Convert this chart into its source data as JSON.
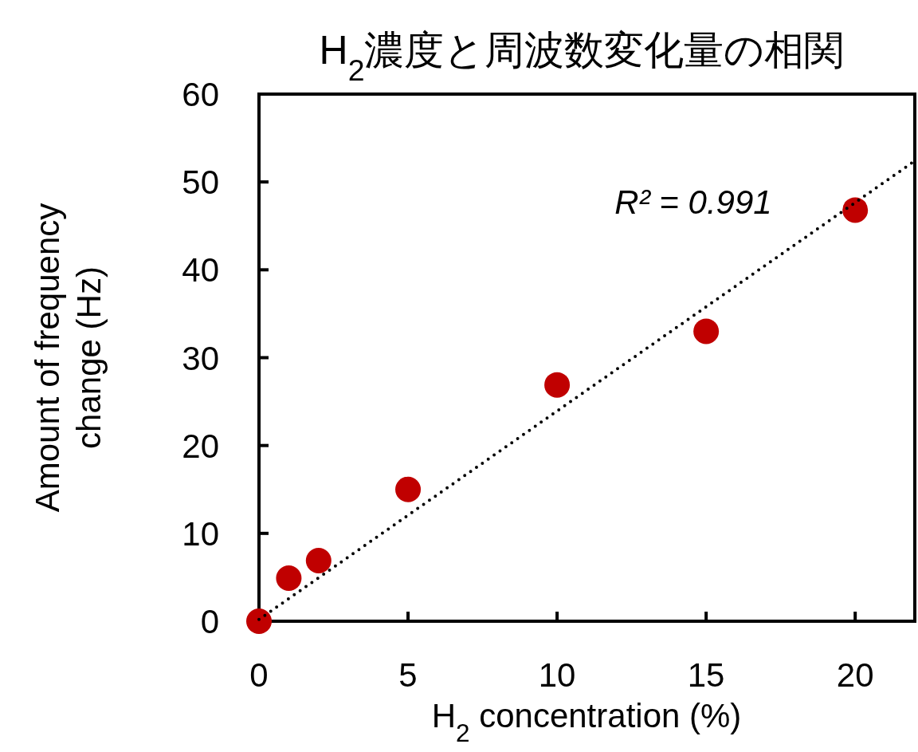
{
  "chart_data": {
    "type": "scatter",
    "title": "H$_{2}$濃度と周波数変化量の相関",
    "xlabel": "H$_{2}$ concentration (%)",
    "ylabel": "Amount of frequency change (Hz)",
    "annotations": [
      "R² = 0.991"
    ],
    "series": [
      {
        "type": "scatter",
        "color": "#c00000",
        "marker": "circle",
        "x": [
          0,
          1,
          2,
          5,
          10,
          15,
          20
        ],
        "values": [
          0,
          4.9,
          6.9,
          15,
          26.9,
          33,
          46.8
        ]
      },
      {
        "type": "line",
        "color": "#000000",
        "line_style": "dotted",
        "x": [
          0,
          22
        ],
        "values": [
          0.2,
          52.4
        ]
      }
    ],
    "xlim": [
      0,
      22
    ],
    "ylim": [
      0,
      60
    ],
    "xticks": [
      0,
      5,
      10,
      15,
      20
    ],
    "yticks": [
      0,
      10,
      20,
      30,
      40,
      50,
      60
    ]
  }
}
